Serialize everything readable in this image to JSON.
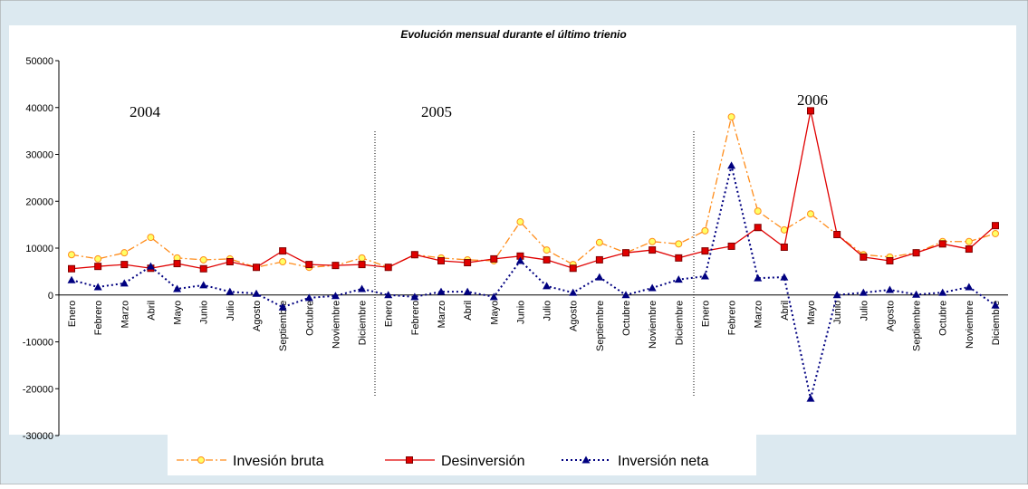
{
  "chart_data": {
    "type": "line",
    "title": "Evolución mensual durante el último trienio",
    "annotations": [
      "2004",
      "2005",
      "2006"
    ],
    "categories": [
      "Enero",
      "Febrero",
      "Marzo",
      "Abril",
      "Mayo",
      "Junio",
      "Julio",
      "Agosto",
      "Septiembre",
      "Octubre",
      "Noviembre",
      "Diciembre",
      "Enero",
      "Febrero",
      "Marzo",
      "Abril",
      "Mayo",
      "Junio",
      "Julio",
      "Agosto",
      "Septiembre",
      "Octubre",
      "Noviembre",
      "Diciembre",
      "Enero",
      "Febrero",
      "Marzo",
      "Abril",
      "Mayo",
      "Junio",
      "Julio",
      "Agosto",
      "Septiembre",
      "Octubre",
      "Noviembre",
      "Diciembre"
    ],
    "series": [
      {
        "name": "Invesión bruta",
        "color": "#ff8c1a",
        "values": [
          8600,
          7700,
          9000,
          12300,
          7900,
          7500,
          7700,
          5900,
          7100,
          5900,
          6300,
          7900,
          5900,
          8600,
          7900,
          7500,
          7300,
          15600,
          9600,
          6500,
          11200,
          9000,
          11400,
          10900,
          13700,
          38000,
          17900,
          13900,
          17300,
          12900,
          8600,
          8100,
          9000,
          11400,
          11400,
          13100
        ]
      },
      {
        "name": "Desinversión",
        "color": "#e00000",
        "values": [
          5600,
          6100,
          6500,
          5700,
          6700,
          5600,
          7100,
          5900,
          9400,
          6500,
          6300,
          6500,
          5900,
          8600,
          7300,
          6900,
          7700,
          8300,
          7500,
          5700,
          7500,
          9000,
          9600,
          7900,
          9400,
          10400,
          14400,
          10200,
          39300,
          12900,
          8100,
          7300,
          9000,
          10900,
          9800,
          14800
        ]
      },
      {
        "name": "Inversión neta",
        "color": "#000080",
        "values": [
          3200,
          1700,
          2500,
          6100,
          1300,
          2100,
          700,
          300,
          -2600,
          -600,
          -200,
          1300,
          0,
          -400,
          700,
          700,
          -400,
          7300,
          1900,
          500,
          3800,
          0,
          1500,
          3300,
          4000,
          27600,
          3600,
          3800,
          -22100,
          0,
          500,
          1100,
          100,
          500,
          1700,
          -2200
        ]
      }
    ],
    "ylim": [
      -30000,
      50000
    ],
    "yticks": [
      50000,
      40000,
      30000,
      20000,
      10000,
      0,
      -10000,
      -20000,
      -30000
    ]
  }
}
